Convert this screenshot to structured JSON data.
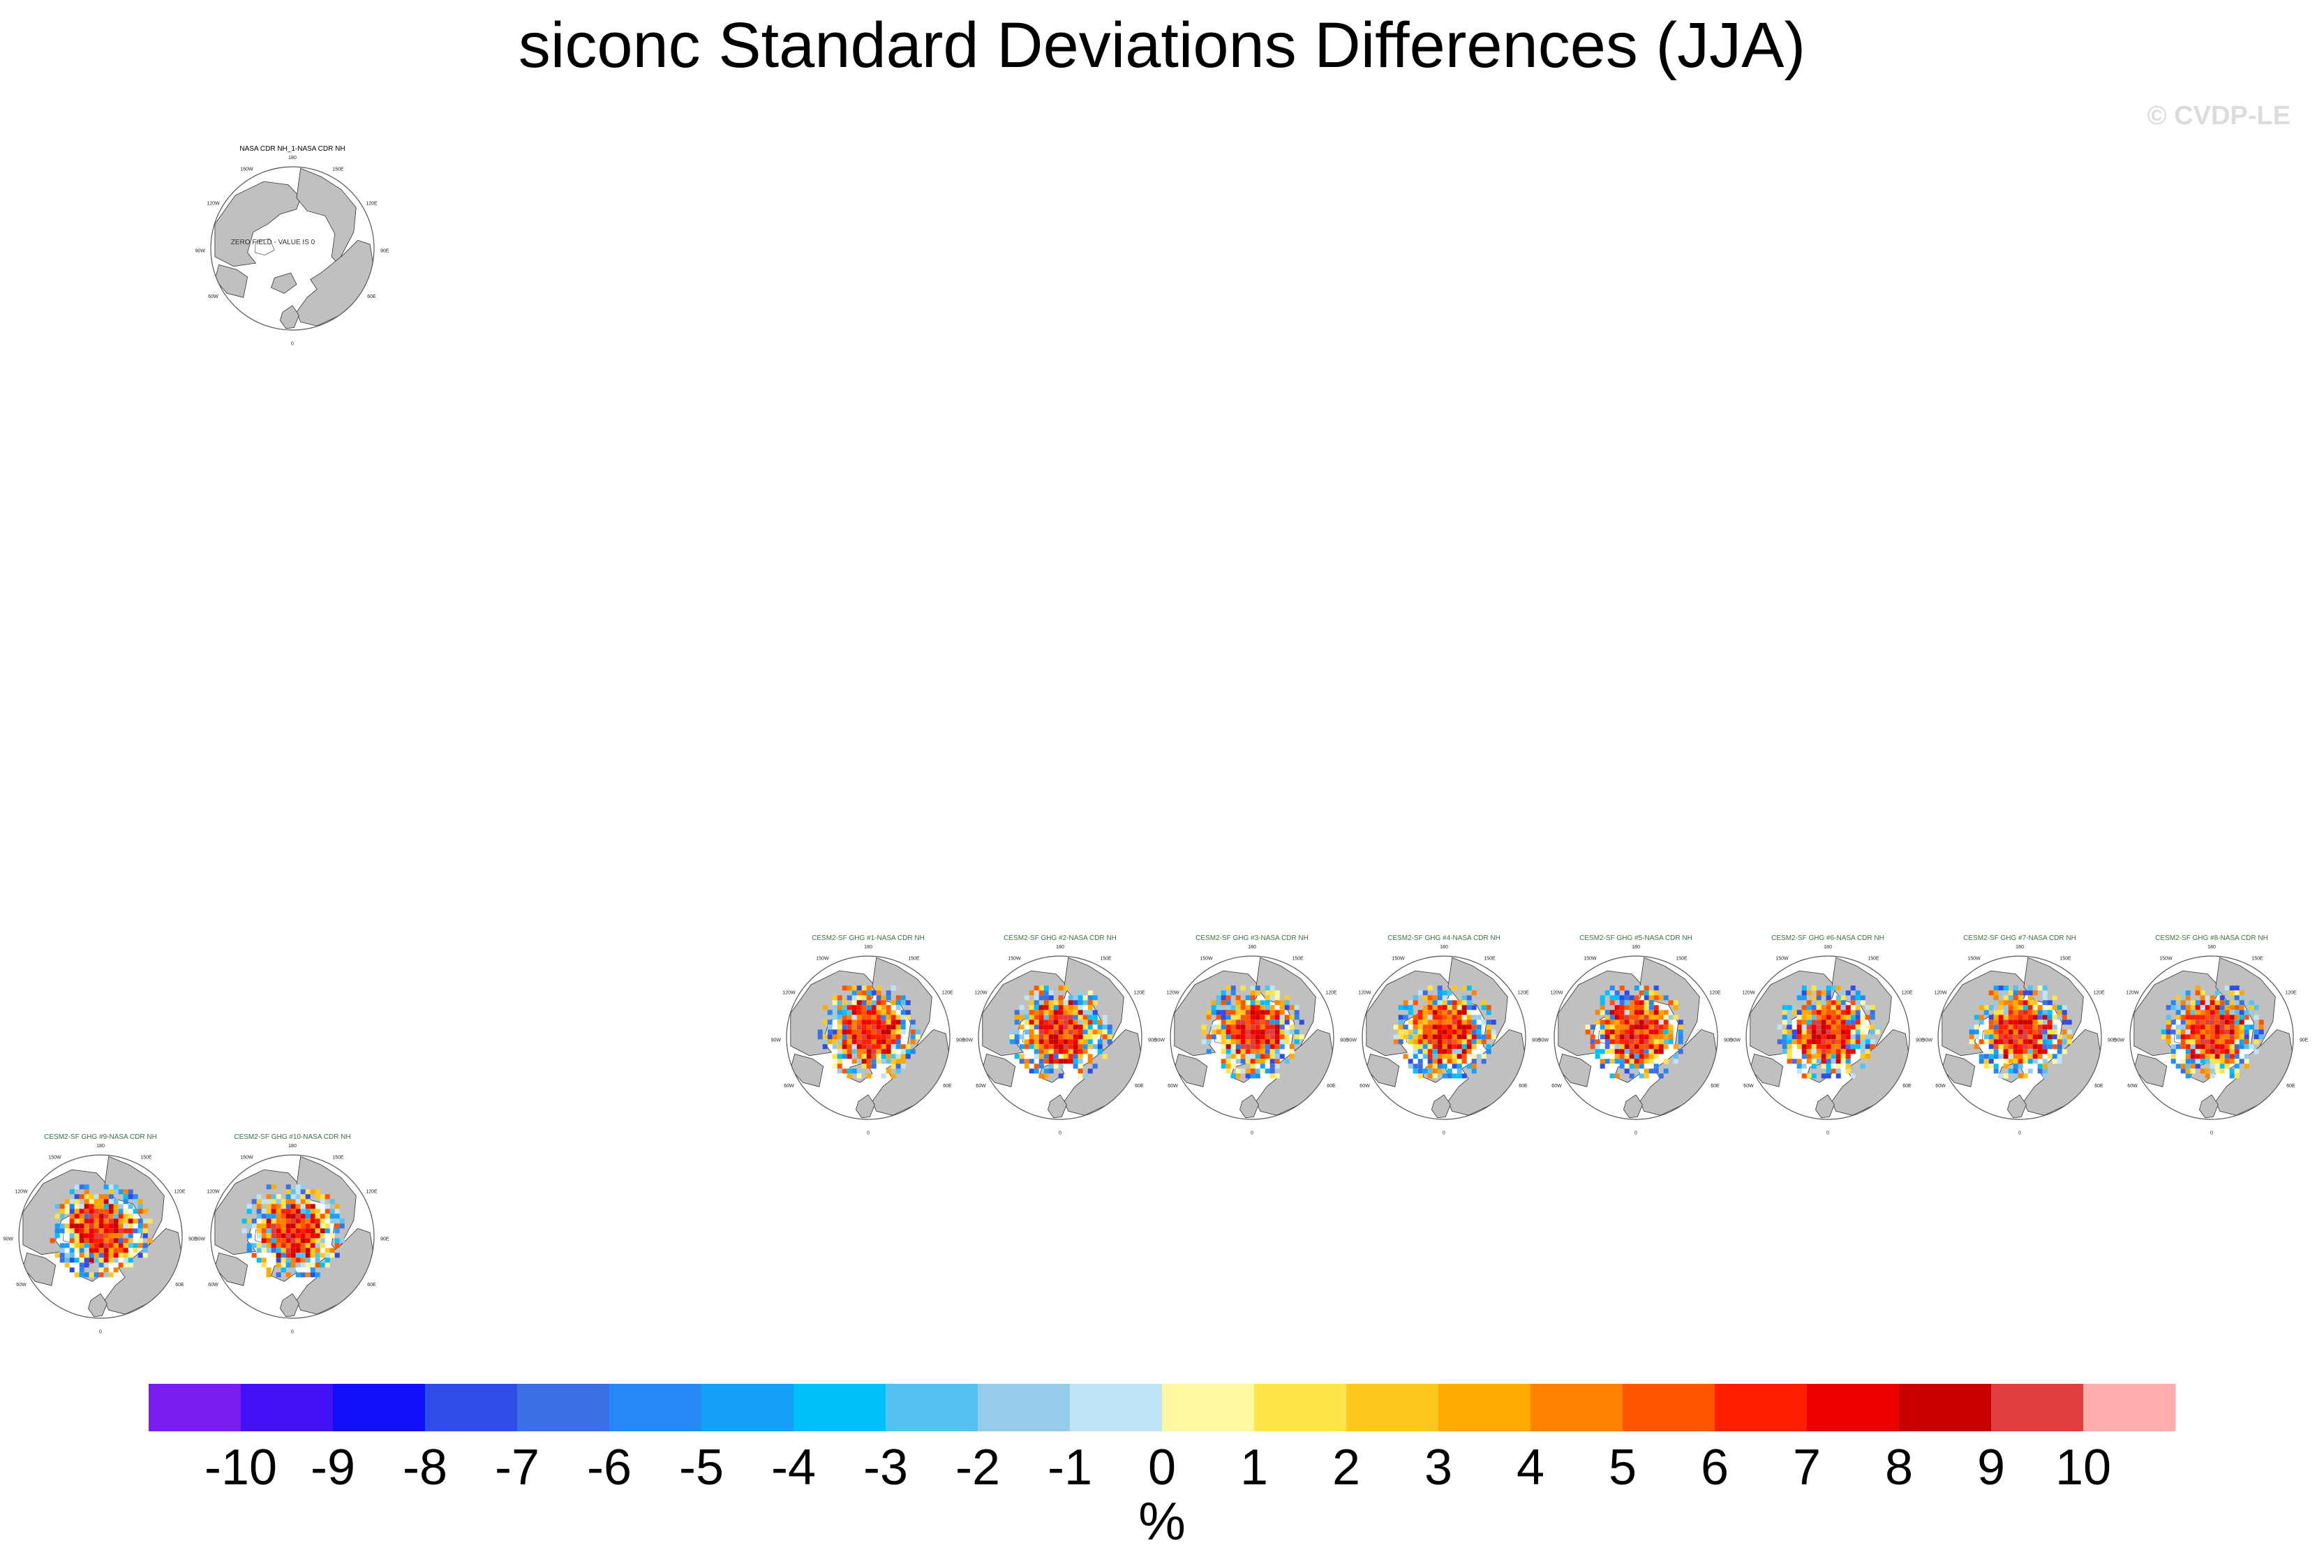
{
  "title": "siconc Standard Deviations Differences (JJA)",
  "watermark": "© CVDP-LE",
  "chart_data": {
    "type": "heatmap",
    "projection": "polar stereographic (Northern Hemisphere)",
    "variable": "siconc",
    "season": "JJA",
    "units": "%",
    "panels": [
      {
        "title": "NASA CDR NH_1-NASA CDR NH",
        "row": 1,
        "col": 2,
        "field": "zero"
      },
      {
        "title": "CESM2-SF GHG #1-NASA CDR NH",
        "row": 5,
        "col": 5,
        "field": "diff",
        "seed": 1
      },
      {
        "title": "CESM2-SF GHG #2-NASA CDR NH",
        "row": 5,
        "col": 6,
        "field": "diff",
        "seed": 2
      },
      {
        "title": "CESM2-SF GHG #3-NASA CDR NH",
        "row": 5,
        "col": 7,
        "field": "diff",
        "seed": 3
      },
      {
        "title": "CESM2-SF GHG #4-NASA CDR NH",
        "row": 5,
        "col": 8,
        "field": "diff",
        "seed": 4
      },
      {
        "title": "CESM2-SF GHG #5-NASA CDR NH",
        "row": 5,
        "col": 9,
        "field": "diff",
        "seed": 5
      },
      {
        "title": "CESM2-SF GHG #6-NASA CDR NH",
        "row": 5,
        "col": 10,
        "field": "diff",
        "seed": 6
      },
      {
        "title": "CESM2-SF GHG #7-NASA CDR NH",
        "row": 5,
        "col": 11,
        "field": "diff",
        "seed": 7
      },
      {
        "title": "CESM2-SF GHG #8-NASA CDR NH",
        "row": 5,
        "col": 12,
        "field": "diff",
        "seed": 8
      },
      {
        "title": "CESM2-SF GHG #9-NASA CDR NH",
        "row": 6,
        "col": 1,
        "field": "diff",
        "seed": 9
      },
      {
        "title": "CESM2-SF GHG #10-NASA CDR NH",
        "row": 6,
        "col": 2,
        "field": "diff",
        "seed": 10
      }
    ],
    "zero_panel_label": "ZERO FIELD - VALUE IS 0",
    "longitude_labels": [
      "180",
      "150W",
      "150E",
      "120W",
      "120E",
      "90W",
      "90E",
      "60W",
      "60E",
      "0"
    ],
    "colorbar": {
      "levels": [
        -10,
        -9,
        -8,
        -7,
        -6,
        -5,
        -4,
        -3,
        -2,
        -1,
        0,
        1,
        2,
        3,
        4,
        5,
        6,
        7,
        8,
        9,
        10
      ],
      "tick_labels": [
        "-10",
        "-9",
        "-8",
        "-7",
        "-6",
        "-5",
        "-4",
        "-3",
        "-2",
        "-1",
        "0",
        "1",
        "2",
        "3",
        "4",
        "5",
        "6",
        "7",
        "8",
        "9",
        "10"
      ],
      "colors": [
        "#7a1df0",
        "#4212f5",
        "#1010f8",
        "#2e4de6",
        "#3a6fe6",
        "#2488f5",
        "#16a0fa",
        "#00c0fa",
        "#54c3f2",
        "#94ccea",
        "#bfe4f5",
        "#fff7a1",
        "#ffe44a",
        "#ffc81e",
        "#ffaa00",
        "#ff8200",
        "#ff5500",
        "#ff1e00",
        "#ee0000",
        "#c90000",
        "#de3e3e",
        "#ffadad"
      ],
      "label": "%"
    }
  },
  "colors": {
    "land": "#c0c0c0",
    "ocean": "#ffffff",
    "panel_title": "#3c6f47",
    "coast": "#333333"
  }
}
